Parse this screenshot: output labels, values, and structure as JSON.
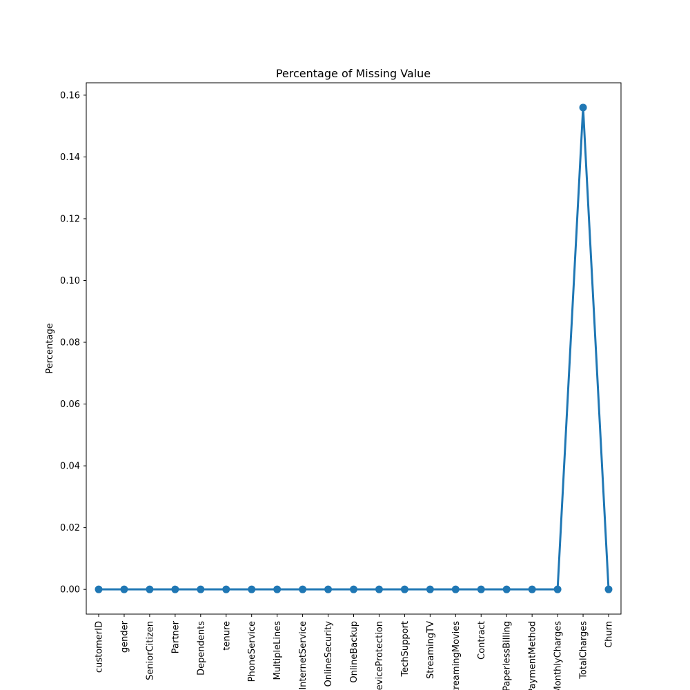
{
  "chart_data": {
    "type": "line",
    "title": "Percentage of Missing Value",
    "xlabel": "",
    "ylabel": "Percentage",
    "categories": [
      "customerID",
      "gender",
      "SeniorCitizen",
      "Partner",
      "Dependents",
      "tenure",
      "PhoneService",
      "MultipleLines",
      "InternetService",
      "OnlineSecurity",
      "OnlineBackup",
      "DeviceProtection",
      "TechSupport",
      "StreamingTV",
      "StreamingMovies",
      "Contract",
      "PaperlessBilling",
      "PaymentMethod",
      "MonthlyCharges",
      "TotalCharges",
      "Churn"
    ],
    "series": [
      {
        "values": [
          0,
          0,
          0,
          0,
          0,
          0,
          0,
          0,
          0,
          0,
          0,
          0,
          0,
          0,
          0,
          0,
          0,
          0,
          0,
          0.156,
          0
        ],
        "color": "#1f77b4"
      }
    ],
    "ylim": [
      -0.008,
      0.164
    ],
    "yticks": [
      0.0,
      0.02,
      0.04,
      0.06,
      0.08,
      0.1,
      0.12,
      0.14,
      0.16
    ],
    "ytick_labels": [
      "0.00",
      "0.02",
      "0.04",
      "0.06",
      "0.08",
      "0.10",
      "0.12",
      "0.14",
      "0.16"
    ],
    "grid": false,
    "markers": true
  }
}
